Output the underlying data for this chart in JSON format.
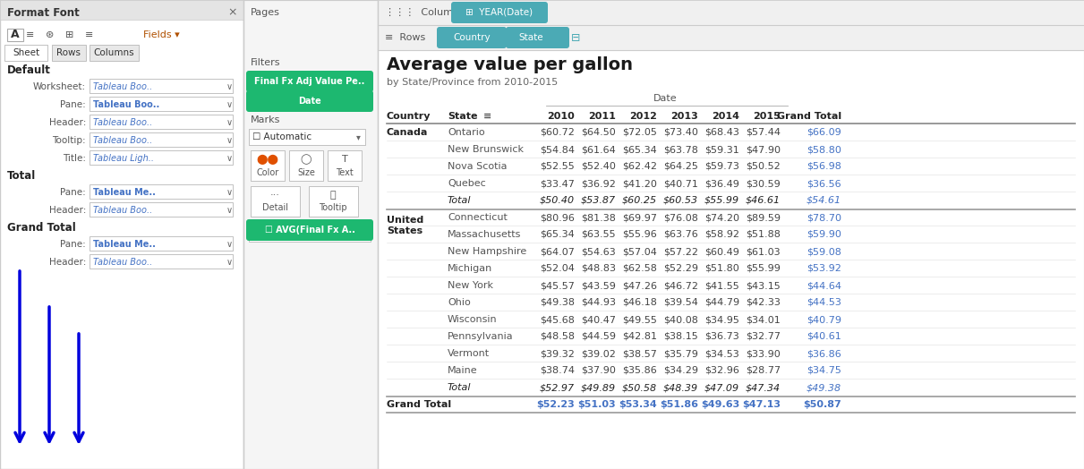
{
  "title": "Average value per gallon",
  "subtitle": "by State/Province from 2010-2015",
  "canada_rows": [
    [
      "Canada",
      "Ontario",
      "$60.72",
      "$64.50",
      "$72.05",
      "$73.40",
      "$68.43",
      "$57.44",
      "$66.09"
    ],
    [
      "",
      "New Brunswick",
      "$54.84",
      "$61.64",
      "$65.34",
      "$63.78",
      "$59.31",
      "$47.90",
      "$58.80"
    ],
    [
      "",
      "Nova Scotia",
      "$52.55",
      "$52.40",
      "$62.42",
      "$64.25",
      "$59.73",
      "$50.52",
      "$56.98"
    ],
    [
      "",
      "Quebec",
      "$33.47",
      "$36.92",
      "$41.20",
      "$40.71",
      "$36.49",
      "$30.59",
      "$36.56"
    ],
    [
      "",
      "Total",
      "$50.40",
      "$53.87",
      "$60.25",
      "$60.53",
      "$55.99",
      "$46.61",
      "$54.61"
    ]
  ],
  "us_rows": [
    [
      "United States",
      "Connecticut",
      "$80.96",
      "$81.38",
      "$69.97",
      "$76.08",
      "$74.20",
      "$89.59",
      "$78.70"
    ],
    [
      "",
      "Massachusetts",
      "$65.34",
      "$63.55",
      "$55.96",
      "$63.76",
      "$58.92",
      "$51.88",
      "$59.90"
    ],
    [
      "",
      "New Hampshire",
      "$64.07",
      "$54.63",
      "$57.04",
      "$57.22",
      "$60.49",
      "$61.03",
      "$59.08"
    ],
    [
      "",
      "Michigan",
      "$52.04",
      "$48.83",
      "$62.58",
      "$52.29",
      "$51.80",
      "$55.99",
      "$53.92"
    ],
    [
      "",
      "New York",
      "$45.57",
      "$43.59",
      "$47.26",
      "$46.72",
      "$41.55",
      "$43.15",
      "$44.64"
    ],
    [
      "",
      "Ohio",
      "$49.38",
      "$44.93",
      "$46.18",
      "$39.54",
      "$44.79",
      "$42.33",
      "$44.53"
    ],
    [
      "",
      "Wisconsin",
      "$45.68",
      "$40.47",
      "$49.55",
      "$40.08",
      "$34.95",
      "$34.01",
      "$40.79"
    ],
    [
      "",
      "Pennsylvania",
      "$48.58",
      "$44.59",
      "$42.81",
      "$38.15",
      "$36.73",
      "$32.77",
      "$40.61"
    ],
    [
      "",
      "Vermont",
      "$39.32",
      "$39.02",
      "$38.57",
      "$35.79",
      "$34.53",
      "$33.90",
      "$36.86"
    ],
    [
      "",
      "Maine",
      "$38.74",
      "$37.90",
      "$35.86",
      "$34.29",
      "$32.96",
      "$28.77",
      "$34.75"
    ],
    [
      "",
      "Total",
      "$52.97",
      "$49.89",
      "$50.58",
      "$48.39",
      "$47.09",
      "$47.34",
      "$49.38"
    ]
  ],
  "grand_total_row": [
    "Grand Total",
    "",
    "$52.23",
    "$51.03",
    "$53.34",
    "$51.86",
    "$49.63",
    "$47.13",
    "$50.87"
  ],
  "teal_pill": "#4baab5",
  "green_btn": "#1db870",
  "blue_link": "#4472c4",
  "text_dark": "#222222",
  "text_med": "#555555",
  "text_light": "#888888",
  "alt_row": "#edf4fb",
  "total_row": "#deeaf7",
  "sep_light": "#dddddd",
  "sep_dark": "#999999",
  "panel_bg": "#f5f5f5",
  "left_bg": "#ffffff",
  "right_bg": "#ffffff",
  "arrow_blue": "#0000dd"
}
